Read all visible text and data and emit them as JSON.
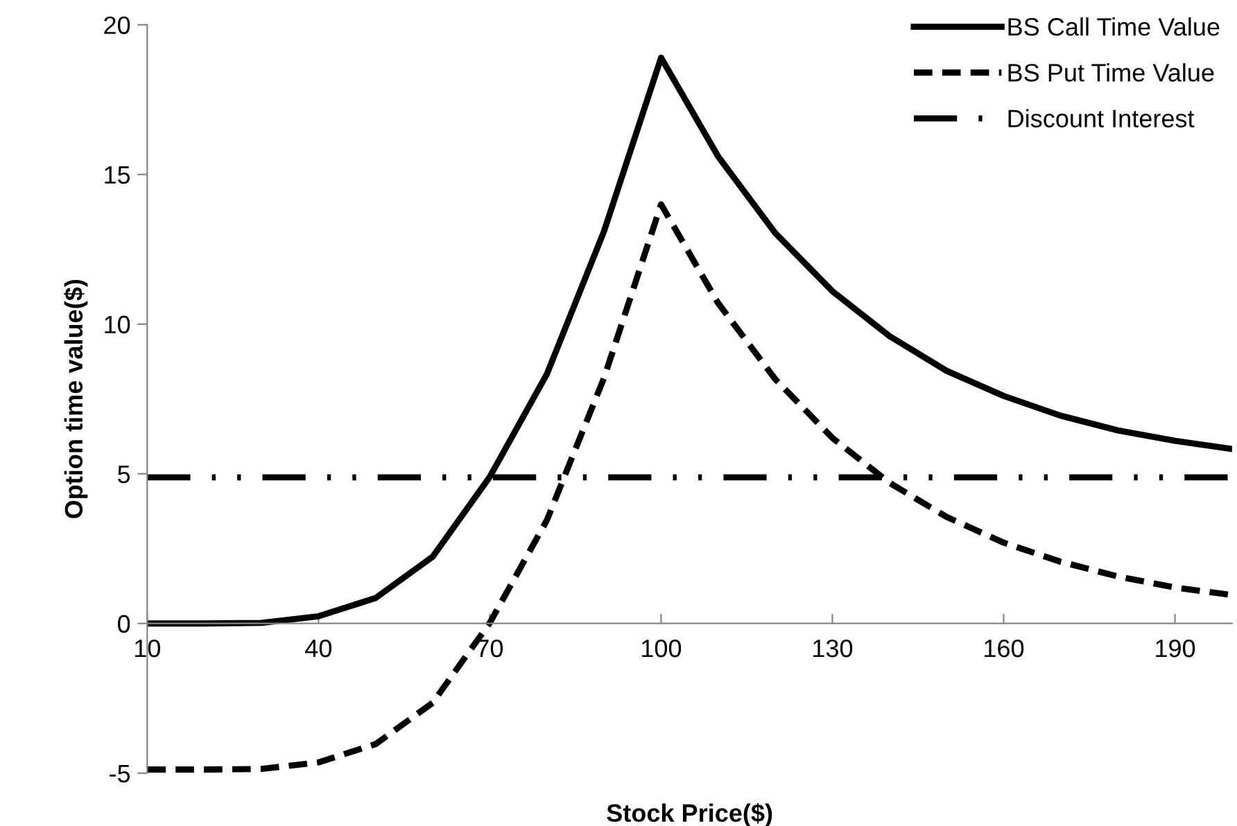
{
  "chart_data": {
    "type": "line",
    "xlabel": "Stock Price($)",
    "ylabel": "Option time value($)",
    "x": [
      10,
      20,
      30,
      40,
      50,
      60,
      70,
      80,
      90,
      100,
      110,
      120,
      130,
      140,
      150,
      160,
      170,
      180,
      190,
      200
    ],
    "series": [
      {
        "name": "BS Call Time Value",
        "color": "#000000",
        "line_style": "solid",
        "values": [
          0,
          0,
          0.02,
          0.24,
          0.85,
          2.23,
          4.9,
          8.33,
          13.1,
          18.9,
          15.6,
          13.04,
          11.1,
          9.6,
          8.44,
          7.6,
          6.94,
          6.45,
          6.1,
          5.83
        ]
      },
      {
        "name": "BS Put Time Value",
        "color": "#000000",
        "line_style": "dashed",
        "values": [
          -4.88,
          -4.88,
          -4.86,
          -4.64,
          -4.03,
          -2.65,
          0.02,
          3.45,
          8.2,
          14.0,
          10.7,
          8.16,
          6.2,
          4.7,
          3.56,
          2.7,
          2.06,
          1.57,
          1.2,
          0.95
        ]
      },
      {
        "name": "Discount Interest",
        "color": "#000000",
        "line_style": "dashdotdot",
        "values": [
          4.88,
          4.88,
          4.88,
          4.88,
          4.88,
          4.88,
          4.88,
          4.88,
          4.88,
          4.88,
          4.88,
          4.88,
          4.88,
          4.88,
          4.88,
          4.88,
          4.88,
          4.88,
          4.88,
          4.88
        ]
      }
    ],
    "xlim": [
      10,
      200
    ],
    "xticks": [
      10,
      40,
      70,
      100,
      130,
      160,
      190
    ],
    "ylim": [
      -5,
      20
    ],
    "yticks": [
      -5,
      0,
      5,
      10,
      15,
      20
    ],
    "grid": false,
    "legend": "top right",
    "marker": "none"
  }
}
